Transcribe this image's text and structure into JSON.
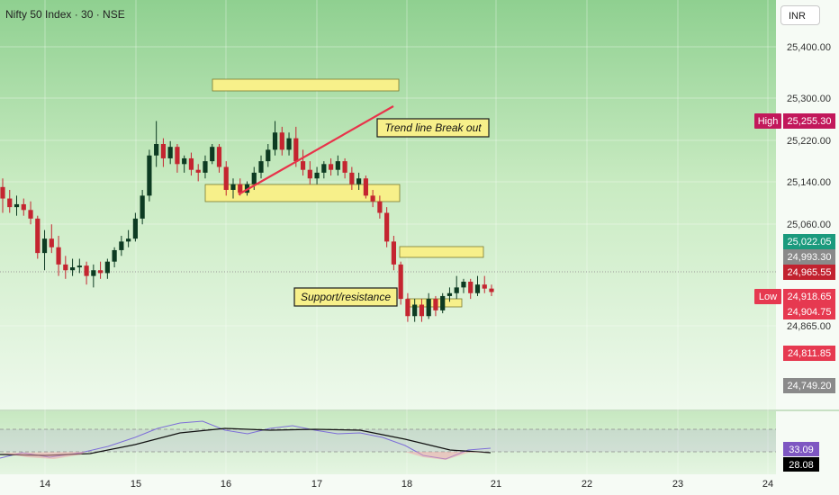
{
  "header": {
    "title": "Nifty 50 Index · 30 · NSE",
    "currency": "INR"
  },
  "chart_data": {
    "type": "candlestick",
    "x_ticks": [
      "14",
      "15",
      "16",
      "17",
      "18",
      "21",
      "22",
      "23",
      "24"
    ],
    "y_ticks": [
      "25,400.00",
      "25,300.00",
      "25,220.00",
      "25,140.00",
      "25,060.00",
      "24,865.00"
    ],
    "ylim": [
      24720,
      25460
    ],
    "price_labels": [
      {
        "tag": "High",
        "value": "25,255.30",
        "color": "#c2185b"
      },
      {
        "value": "25,022.05",
        "color": "#1b9a7d"
      },
      {
        "value": "24,993.30",
        "color": "#8a8a8a"
      },
      {
        "value": "24,965.55",
        "color": "#c2222f"
      },
      {
        "tag": "Low",
        "value": "24,918.65",
        "color": "#e63950"
      },
      {
        "value": "24,904.75",
        "color": "#e63950"
      },
      {
        "value": "24,811.85",
        "color": "#e63950"
      },
      {
        "value": "24,749.20",
        "color": "#8a8a8a"
      }
    ],
    "candles": [
      [
        25145,
        25160,
        25100,
        25125
      ],
      [
        25125,
        25140,
        25100,
        25110
      ],
      [
        25110,
        25130,
        25095,
        25115
      ],
      [
        25115,
        25125,
        25095,
        25105
      ],
      [
        25105,
        25120,
        25080,
        25090
      ],
      [
        25090,
        25095,
        25020,
        25030
      ],
      [
        25030,
        25070,
        25000,
        25055
      ],
      [
        25055,
        25080,
        25030,
        25040
      ],
      [
        25040,
        25060,
        24990,
        25010
      ],
      [
        25010,
        25025,
        24985,
        25000
      ],
      [
        25000,
        25020,
        24990,
        25005
      ],
      [
        25005,
        25020,
        24995,
        25008
      ],
      [
        25008,
        25015,
        24975,
        24990
      ],
      [
        24990,
        25010,
        24970,
        25000
      ],
      [
        25000,
        25015,
        24985,
        24995
      ],
      [
        24995,
        25020,
        24985,
        25015
      ],
      [
        25015,
        25040,
        25005,
        25035
      ],
      [
        25035,
        25060,
        25025,
        25050
      ],
      [
        25050,
        25070,
        25040,
        25055
      ],
      [
        25055,
        25100,
        25050,
        25090
      ],
      [
        25090,
        25140,
        25080,
        25130
      ],
      [
        25130,
        25210,
        25120,
        25200
      ],
      [
        25200,
        25260,
        25180,
        25220
      ],
      [
        25220,
        25230,
        25180,
        25195
      ],
      [
        25195,
        25225,
        25185,
        25215
      ],
      [
        25215,
        25220,
        25170,
        25185
      ],
      [
        25185,
        25200,
        25170,
        25195
      ],
      [
        25195,
        25205,
        25165,
        25175
      ],
      [
        25175,
        25185,
        25155,
        25170
      ],
      [
        25170,
        25200,
        25160,
        25190
      ],
      [
        25190,
        25220,
        25185,
        25215
      ],
      [
        25215,
        25220,
        25170,
        25180
      ],
      [
        25180,
        25190,
        25130,
        25140
      ],
      [
        25140,
        25160,
        25125,
        25150
      ],
      [
        25150,
        25160,
        25130,
        25135
      ],
      [
        25135,
        25155,
        25130,
        25150
      ],
      [
        25150,
        25180,
        25140,
        25170
      ],
      [
        25170,
        25200,
        25160,
        25190
      ],
      [
        25190,
        25220,
        25180,
        25210
      ],
      [
        25210,
        25260,
        25200,
        25240
      ],
      [
        25240,
        25250,
        25200,
        25210
      ],
      [
        25210,
        25240,
        25200,
        25230
      ],
      [
        25230,
        25250,
        25180,
        25190
      ],
      [
        25190,
        25210,
        25165,
        25175
      ],
      [
        25175,
        25190,
        25150,
        25160
      ],
      [
        25160,
        25180,
        25150,
        25170
      ],
      [
        25170,
        25190,
        25160,
        25185
      ],
      [
        25185,
        25195,
        25165,
        25175
      ],
      [
        25175,
        25200,
        25165,
        25190
      ],
      [
        25190,
        25195,
        25160,
        25170
      ],
      [
        25170,
        25180,
        25140,
        25150
      ],
      [
        25150,
        25170,
        25140,
        25160
      ],
      [
        25160,
        25165,
        25125,
        25130
      ],
      [
        25130,
        25140,
        25110,
        25120
      ],
      [
        25120,
        25130,
        25090,
        25100
      ],
      [
        25100,
        25110,
        25040,
        25050
      ],
      [
        25050,
        25060,
        25000,
        25010
      ],
      [
        25010,
        25015,
        24940,
        24950
      ],
      [
        24950,
        24960,
        24910,
        24920
      ],
      [
        24920,
        24950,
        24910,
        24940
      ],
      [
        24940,
        24950,
        24910,
        24920
      ],
      [
        24920,
        24960,
        24915,
        24950
      ],
      [
        24950,
        24955,
        24920,
        24930
      ],
      [
        24930,
        24960,
        24925,
        24955
      ],
      [
        24955,
        24970,
        24945,
        24960
      ],
      [
        24960,
        24990,
        24950,
        24970
      ],
      [
        24970,
        24985,
        24960,
        24980
      ],
      [
        24980,
        24985,
        24950,
        24960
      ],
      [
        24960,
        24990,
        24955,
        24975
      ],
      [
        24975,
        24990,
        24960,
        24968
      ],
      [
        24968,
        24975,
        24955,
        24962
      ]
    ],
    "rsi": {
      "levels": [
        70,
        30
      ],
      "labels": [
        "33.09",
        "28.08"
      ],
      "label_colors": [
        "#7e57c2",
        "#000000"
      ]
    },
    "annotations": [
      "Trend line Break out",
      "Support/resistance"
    ]
  }
}
